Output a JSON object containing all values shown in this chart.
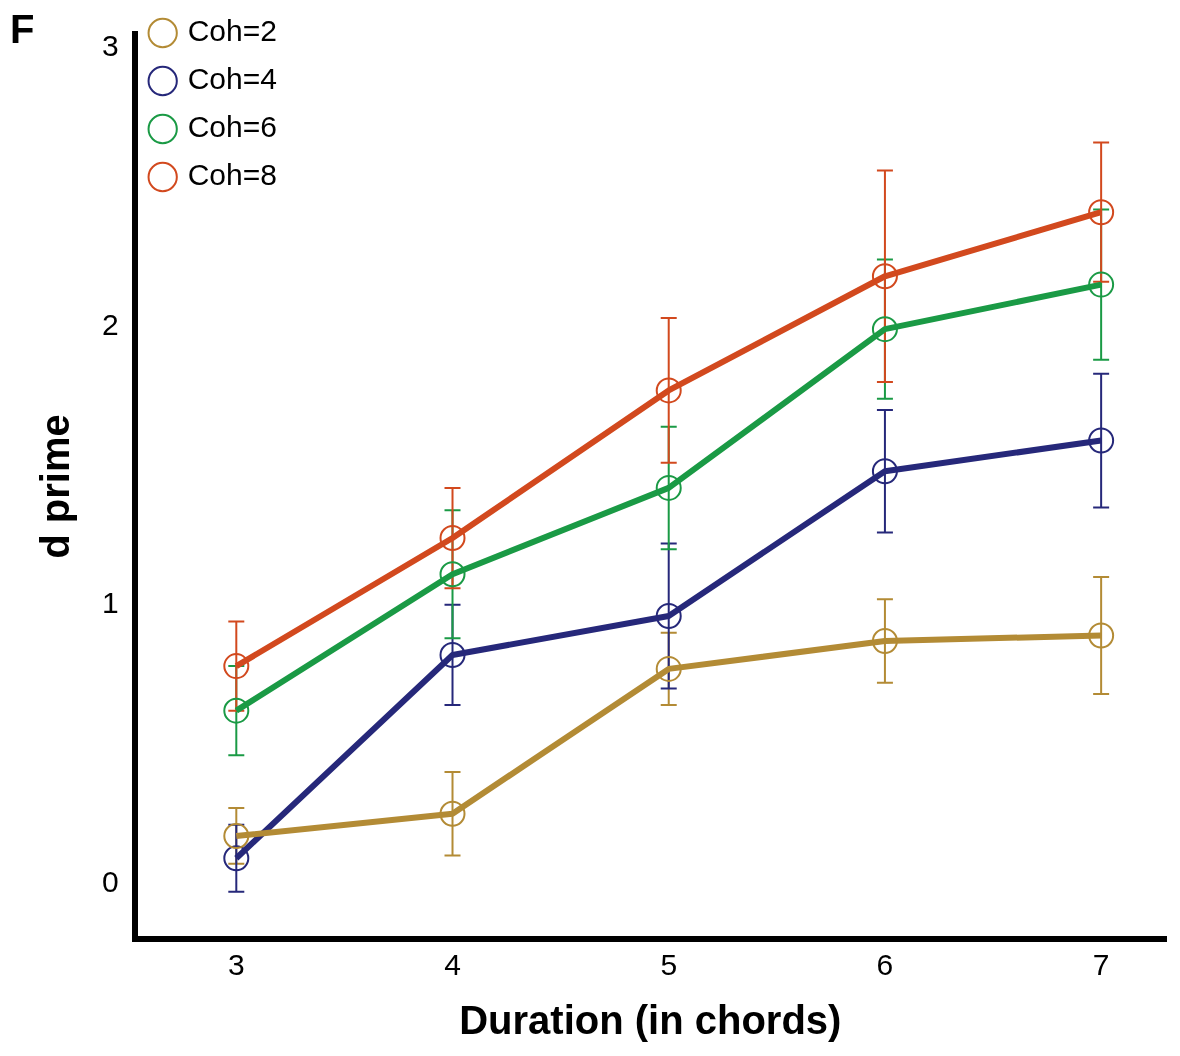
{
  "chart_data": {
    "type": "line",
    "xlabel": "Duration (in chords)",
    "ylabel": "d prime",
    "annotations": [
      "F"
    ],
    "x": [
      3,
      4,
      5,
      6,
      7
    ],
    "xlim": [
      2.53,
      7.3
    ],
    "xticks": [
      3,
      4,
      5,
      6,
      7
    ],
    "ylim": [
      -0.2,
      3.05
    ],
    "yticks": [
      0,
      1,
      2,
      3
    ],
    "grid": false,
    "legend": "top left",
    "marker": "circle",
    "line_style": "solid",
    "series": [
      {
        "name": "Coh=2",
        "color": "#b38b35",
        "values": [
          0.17,
          0.25,
          0.77,
          0.87,
          0.89
        ],
        "errors": [
          0.1,
          0.15,
          0.13,
          0.15,
          0.21
        ]
      },
      {
        "name": "Coh=4",
        "color": "#26287a",
        "values": [
          0.09,
          0.82,
          0.96,
          1.48,
          1.59
        ],
        "errors": [
          0.12,
          0.18,
          0.26,
          0.22,
          0.24
        ]
      },
      {
        "name": "Coh=6",
        "color": "#1a9a45",
        "values": [
          0.62,
          1.11,
          1.42,
          1.99,
          2.15
        ],
        "errors": [
          0.16,
          0.23,
          0.22,
          0.25,
          0.27
        ]
      },
      {
        "name": "Coh=8",
        "color": "#d2491e",
        "values": [
          0.78,
          1.24,
          1.77,
          2.18,
          2.41
        ],
        "errors": [
          0.16,
          0.18,
          0.26,
          0.38,
          0.25
        ]
      }
    ]
  }
}
